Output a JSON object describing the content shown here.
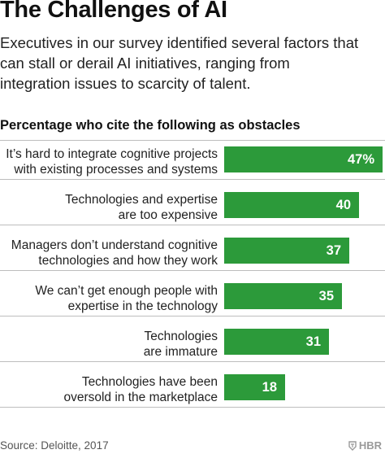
{
  "title": "The Challenges of AI",
  "intro_lines": [
    "Executives in our survey identified several factors that",
    "can stall or derail AI initiatives, ranging from",
    "integration issues to scarcity of talent."
  ],
  "chart_heading": "Percentage who cite the following as obstacles",
  "chart_data": {
    "type": "bar",
    "orientation": "horizontal",
    "categories": [
      [
        "It’s hard to integrate cognitive projects",
        "with existing processes and systems"
      ],
      [
        "Technologies and expertise",
        "are too expensive"
      ],
      [
        "Managers don’t understand cognitive",
        "technologies and how they work"
      ],
      [
        "We can’t get enough people with",
        "expertise in the technology"
      ],
      [
        "Technologies",
        "are immature"
      ],
      [
        "Technologies have been",
        "oversold in the marketplace"
      ]
    ],
    "values": [
      47,
      40,
      37,
      35,
      31,
      18
    ],
    "value_labels": [
      "47%",
      "40",
      "37",
      "35",
      "31",
      "18"
    ],
    "xlim": [
      0,
      47
    ],
    "bar_color": "#2c9a3a",
    "grid": false
  },
  "source": "Source: Deloitte, 2017",
  "logo_text": "HBR"
}
